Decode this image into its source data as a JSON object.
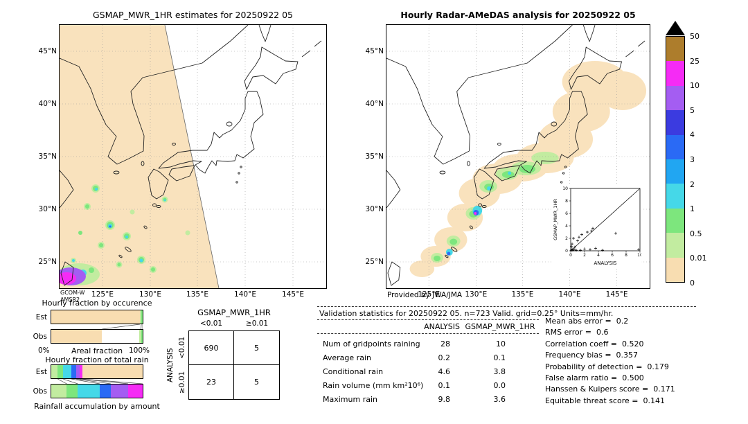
{
  "colorbar": {
    "overflow_marker_color": "#000000",
    "labels": [
      "50",
      "25",
      "10",
      "5",
      "4",
      "3",
      "2",
      "1",
      "0.5",
      "0.01",
      "0"
    ],
    "colors_top_to_bottom": [
      "#ad7d2c",
      "#f52bf5",
      "#a45df2",
      "#3b3be0",
      "#2a6af5",
      "#21a6f2",
      "#45d8e8",
      "#7de67d",
      "#c2eca0",
      "#f8ddb1"
    ]
  },
  "left_map": {
    "source_line1": "GCOM-W",
    "source_line2": "AMSR2"
  },
  "right_map": {
    "credit": "Provided by JWA/JMA"
  },
  "scores": [
    "Mean abs error =  0.2",
    "RMS error =  0.6",
    "Correlation coeff =  0.520",
    "Frequency bias =  0.357",
    "Probability of detection =  0.179",
    "False alarm ratio =  0.500",
    "Hanssen & Kuipers score =  0.171",
    "Equitable threat score =  0.141"
  ],
  "chart_data": [
    {
      "type": "heatmap",
      "subtype": "precipitation-map",
      "title": "GSMAP_MWR_1HR estimates for 20250922 05",
      "x_ticks": [
        "125°E",
        "130°E",
        "135°E",
        "140°E",
        "145°E"
      ],
      "y_ticks": [
        "45°N",
        "40°N",
        "35°N",
        "30°N",
        "25°N"
      ],
      "units": "mm/hr",
      "description": "AMSR2 swath (pale orange, no-rain) crossing the map diagonally; scattered 0.5-4 mm/hr cells in the East China Sea south-west of Kyushu; 10-50 mm/hr cell near 121°E 23°N"
    },
    {
      "type": "heatmap",
      "subtype": "precipitation-map",
      "title": "Hourly Radar-AMeDAS analysis for 20250922 05",
      "x_ticks": [
        "125°E",
        "130°E",
        "135°E",
        "140°E",
        "145°E"
      ],
      "y_ticks": [
        "45°N",
        "40°N",
        "35°N",
        "30°N",
        "25°N"
      ],
      "units": "mm/hr",
      "description": "Band of 0.01-1 mm/hr rain along the Pacific side of Japan from Hokkaido to the Ryukyu islands with embedded 2-25 mm/hr cells near 129-130°E, 26-30°N"
    },
    {
      "type": "scatter",
      "xlabel": "ANALYSIS",
      "ylabel": "GSMAP_MWR_1HR",
      "xlim": [
        0,
        10
      ],
      "ylim": [
        0,
        10
      ],
      "ticks": [
        0,
        2,
        4,
        6,
        8,
        10
      ],
      "diagonal": true,
      "points": [
        [
          0.1,
          0.1
        ],
        [
          0.2,
          0.3
        ],
        [
          0.3,
          0.1
        ],
        [
          0.5,
          0.2
        ],
        [
          0.6,
          0.6
        ],
        [
          0.8,
          0.1
        ],
        [
          1.0,
          1.6
        ],
        [
          1.2,
          2.2
        ],
        [
          1.6,
          2.6
        ],
        [
          2.0,
          0.3
        ],
        [
          2.4,
          3.0
        ],
        [
          3.0,
          3.2
        ],
        [
          3.2,
          3.6
        ],
        [
          3.6,
          0.4
        ],
        [
          4.6,
          0.1
        ],
        [
          6.5,
          2.8
        ],
        [
          9.8,
          0.2
        ],
        [
          0.2,
          1.1
        ],
        [
          0.4,
          2.0
        ],
        [
          1.4,
          0.1
        ],
        [
          2.8,
          0.2
        ],
        [
          0.1,
          0.7
        ]
      ]
    },
    {
      "type": "bar",
      "subtype": "stacked-horizontal-fraction",
      "title": "Hourly fraction by occurence",
      "xlabel": "Areal fraction",
      "x_min_label": "0%",
      "x_max_label": "100%",
      "rows": [
        {
          "label": "Est",
          "segments": [
            {
              "color": "#f8ddb1",
              "pct": 97
            },
            {
              "color": "#c2eca0",
              "pct": 1.5
            },
            {
              "color": "#7de67d",
              "pct": 1.5
            }
          ]
        },
        {
          "label": "Obs",
          "segments": [
            {
              "color": "#f8ddb1",
              "pct": 55.5
            },
            {
              "color": "#ffffff",
              "pct": 40.5
            },
            {
              "color": "#c2eca0",
              "pct": 2.2
            },
            {
              "color": "#7de67d",
              "pct": 1.8
            }
          ]
        }
      ]
    },
    {
      "type": "bar",
      "subtype": "stacked-horizontal-fraction",
      "title": "Hourly fraction of total rain",
      "xlabel": "Rainfall accumulation by amount",
      "rows": [
        {
          "label": "Est",
          "segments": [
            {
              "color": "#c2eca0",
              "pct": 7
            },
            {
              "color": "#7de67d",
              "pct": 6
            },
            {
              "color": "#45d8e8",
              "pct": 9
            },
            {
              "color": "#2a6af5",
              "pct": 5
            },
            {
              "color": "#a45df2",
              "pct": 4
            },
            {
              "color": "#f52bf5",
              "pct": 3
            },
            {
              "color": "#f8ddb1",
              "pct": 66
            }
          ]
        },
        {
          "label": "Obs",
          "segments": [
            {
              "color": "#c2eca0",
              "pct": 17
            },
            {
              "color": "#7de67d",
              "pct": 12
            },
            {
              "color": "#45d8e8",
              "pct": 24
            },
            {
              "color": "#2a6af5",
              "pct": 12
            },
            {
              "color": "#a45df2",
              "pct": 19
            },
            {
              "color": "#f52bf5",
              "pct": 16
            }
          ]
        }
      ]
    },
    {
      "type": "table",
      "subtype": "contingency",
      "title": "GSMAP_MWR_1HR",
      "row_axis_label": "ANALYSIS",
      "columns": [
        "<0.01",
        "≥0.01"
      ],
      "row_labels": [
        "<0.01",
        "≥0.01"
      ],
      "values": [
        [
          "690",
          "5"
        ],
        [
          "23",
          "5"
        ]
      ]
    },
    {
      "type": "table",
      "subtype": "validation-statistics",
      "title": "Validation statistics for 20250922 05. n=723 Valid. grid=0.25° Units=mm/hr.",
      "columns": [
        "ANALYSIS",
        "GSMAP_MWR_1HR"
      ],
      "rows": [
        {
          "label": "Num of gridpoints raining",
          "values": [
            "28",
            "10"
          ]
        },
        {
          "label": "Average rain",
          "values": [
            "0.2",
            "0.1"
          ]
        },
        {
          "label": "Conditional rain",
          "values": [
            "4.6",
            "3.8"
          ]
        },
        {
          "label": "Rain volume (mm km²10⁶)",
          "values": [
            "0.1",
            "0.0"
          ]
        },
        {
          "label": "Maximum rain",
          "values": [
            "9.8",
            "3.6"
          ]
        }
      ]
    }
  ]
}
